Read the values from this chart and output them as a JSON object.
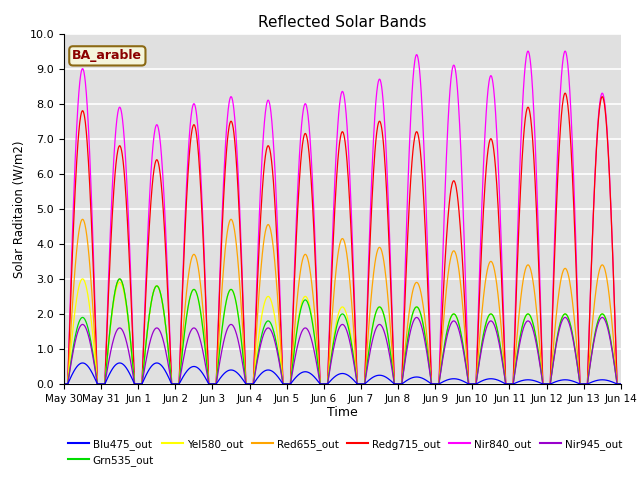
{
  "title": "Reflected Solar Bands",
  "xlabel": "Time",
  "ylabel": "Solar Raditaion (W/m2)",
  "annotation_text": "BA_arable",
  "annotation_color": "#8B0000",
  "annotation_bg": "#F5F5DC",
  "annotation_border": "#8B6914",
  "ylim": [
    0.0,
    10.0
  ],
  "yticks": [
    0.0,
    1.0,
    2.0,
    3.0,
    4.0,
    5.0,
    6.0,
    7.0,
    8.0,
    9.0,
    10.0
  ],
  "bg_color": "#E0E0E0",
  "grid_color": "#FFFFFF",
  "bands": {
    "Blu475_out": {
      "color": "#0000FF"
    },
    "Grn535_out": {
      "color": "#00DD00"
    },
    "Yel580_out": {
      "color": "#FFFF00"
    },
    "Red655_out": {
      "color": "#FFA500"
    },
    "Redg715_out": {
      "color": "#FF0000"
    },
    "Nir840_out": {
      "color": "#FF00FF"
    },
    "Nir945_out": {
      "color": "#9900CC"
    }
  },
  "day_peaks": {
    "Nir840_out": [
      9.0,
      7.9,
      7.4,
      8.0,
      8.2,
      8.1,
      8.0,
      8.35,
      8.7,
      9.4,
      9.1,
      8.8,
      9.5,
      9.5,
      8.3
    ],
    "Redg715_out": [
      7.8,
      6.8,
      6.4,
      7.4,
      7.5,
      6.8,
      7.15,
      7.2,
      7.5,
      7.2,
      5.8,
      7.0,
      7.9,
      8.3,
      8.2
    ],
    "Red655_out": [
      4.7,
      3.0,
      2.8,
      3.7,
      4.7,
      4.55,
      3.7,
      4.15,
      3.9,
      2.9,
      3.8,
      3.5,
      3.4,
      3.3,
      3.4
    ],
    "Yel580_out": [
      3.0,
      2.9,
      2.8,
      2.7,
      2.7,
      2.5,
      2.5,
      2.2,
      2.2,
      2.2,
      2.0,
      2.0,
      2.0,
      2.0,
      2.0
    ],
    "Grn535_out": [
      1.9,
      3.0,
      2.8,
      2.7,
      2.7,
      1.8,
      2.4,
      2.0,
      2.2,
      2.2,
      2.0,
      2.0,
      2.0,
      2.0,
      2.0
    ],
    "Nir945_out": [
      1.7,
      1.6,
      1.6,
      1.6,
      1.7,
      1.6,
      1.6,
      1.7,
      1.7,
      1.9,
      1.8,
      1.8,
      1.8,
      1.9,
      1.9
    ],
    "Blu475_out": [
      0.6,
      0.6,
      0.6,
      0.5,
      0.4,
      0.4,
      0.35,
      0.3,
      0.25,
      0.2,
      0.15,
      0.15,
      0.12,
      0.12,
      0.12
    ]
  },
  "n_days": 15,
  "points_per_day": 120,
  "xtick_labels": [
    "May 30",
    "May 31",
    "Jun 1",
    "Jun 2",
    "Jun 3",
    "Jun 4",
    "Jun 5",
    "Jun 6",
    "Jun 7",
    "Jun 8",
    "Jun 9",
    "Jun 10",
    "Jun 11",
    "Jun 12",
    "Jun 13",
    "Jun 14"
  ],
  "legend_order": [
    "Blu475_out",
    "Grn535_out",
    "Yel580_out",
    "Red655_out",
    "Redg715_out",
    "Nir840_out",
    "Nir945_out"
  ]
}
